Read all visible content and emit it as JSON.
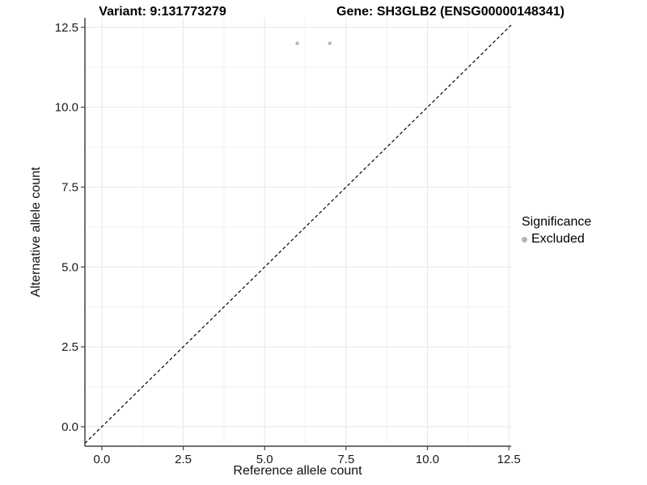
{
  "chart_data": {
    "type": "scatter",
    "title_left": "Variant: 9:131773279",
    "title_right": "Gene: SH3GLB2 (ENSG00000148341)",
    "xlabel": "Reference allele count",
    "ylabel": "Alternative allele count",
    "x_ticks": [
      0.0,
      2.5,
      5.0,
      7.5,
      10.0,
      12.5
    ],
    "y_ticks": [
      0.0,
      2.5,
      5.0,
      7.5,
      10.0,
      12.5
    ],
    "x_tick_labels": [
      "0.0",
      "2.5",
      "5.0",
      "7.5",
      "10.0",
      "12.5"
    ],
    "y_tick_labels": [
      "0.0",
      "2.5",
      "5.0",
      "7.5",
      "10.0",
      "12.5"
    ],
    "xlim": [
      -0.52,
      12.57
    ],
    "ylim": [
      -0.61,
      12.8
    ],
    "grid": "major-and-minor",
    "identity_line": {
      "slope": 1,
      "intercept": 0,
      "style": "dashed",
      "color": "#000000"
    },
    "series": [
      {
        "name": "Excluded",
        "color": "#b5b5b5",
        "points": [
          {
            "x": 6,
            "y": 12
          },
          {
            "x": 7,
            "y": 12
          }
        ]
      }
    ],
    "legend": {
      "title": "Significance",
      "position": "right",
      "items": [
        {
          "label": "Excluded",
          "color": "#b5b5b5"
        }
      ]
    },
    "colors": {
      "axis_line": "#444444",
      "major_grid": "#e7e7e7",
      "minor_grid": "#f2f2f2",
      "tick_label": "#1a1a1a",
      "point": "#b5b5b5"
    }
  }
}
